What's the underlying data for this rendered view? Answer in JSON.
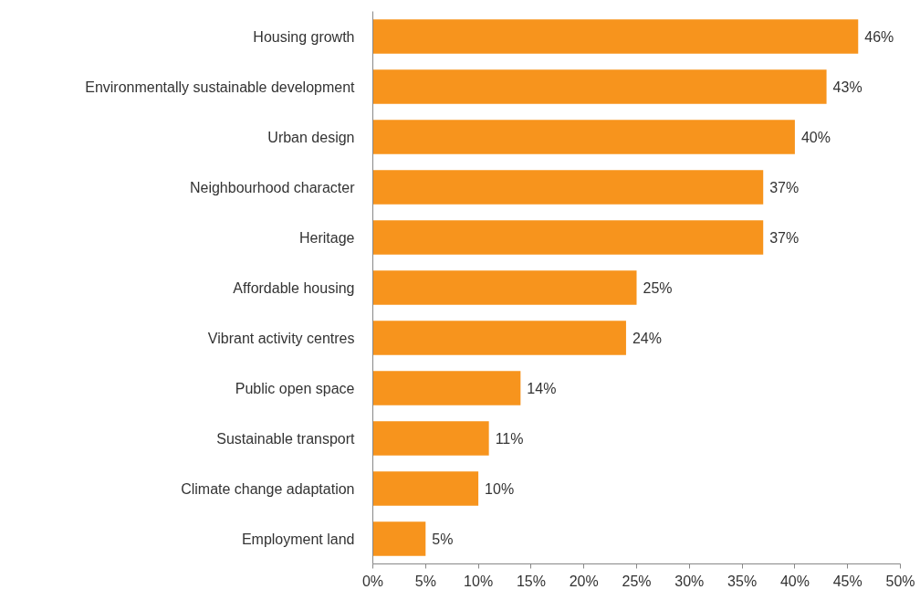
{
  "chart_data": {
    "type": "bar",
    "orientation": "horizontal",
    "categories": [
      "Housing growth",
      "Environmentally sustainable development",
      "Urban design",
      "Neighbourhood character",
      "Heritage",
      "Affordable housing",
      "Vibrant activity centres",
      "Public open space",
      "Sustainable transport",
      "Climate change adaptation",
      "Employment land"
    ],
    "values": [
      46,
      43,
      40,
      37,
      37,
      25,
      24,
      14,
      11,
      10,
      5
    ],
    "value_labels": [
      "46%",
      "43%",
      "40%",
      "37%",
      "37%",
      "25%",
      "24%",
      "14%",
      "11%",
      "10%",
      "5%"
    ],
    "color": "#f7941d",
    "xlim": [
      0,
      50
    ],
    "xticks": [
      {
        "value": 0,
        "label": "0%"
      },
      {
        "value": 5,
        "label": "5%"
      },
      {
        "value": 10,
        "label": "10%"
      },
      {
        "value": 15,
        "label": "15%"
      },
      {
        "value": 20,
        "label": "20%"
      },
      {
        "value": 25,
        "label": "25%"
      },
      {
        "value": 30,
        "label": "30%"
      },
      {
        "value": 35,
        "label": "35%"
      },
      {
        "value": 40,
        "label": "40%"
      },
      {
        "value": 45,
        "label": "45%"
      },
      {
        "value": 50,
        "label": "50%"
      }
    ],
    "grid": false
  }
}
